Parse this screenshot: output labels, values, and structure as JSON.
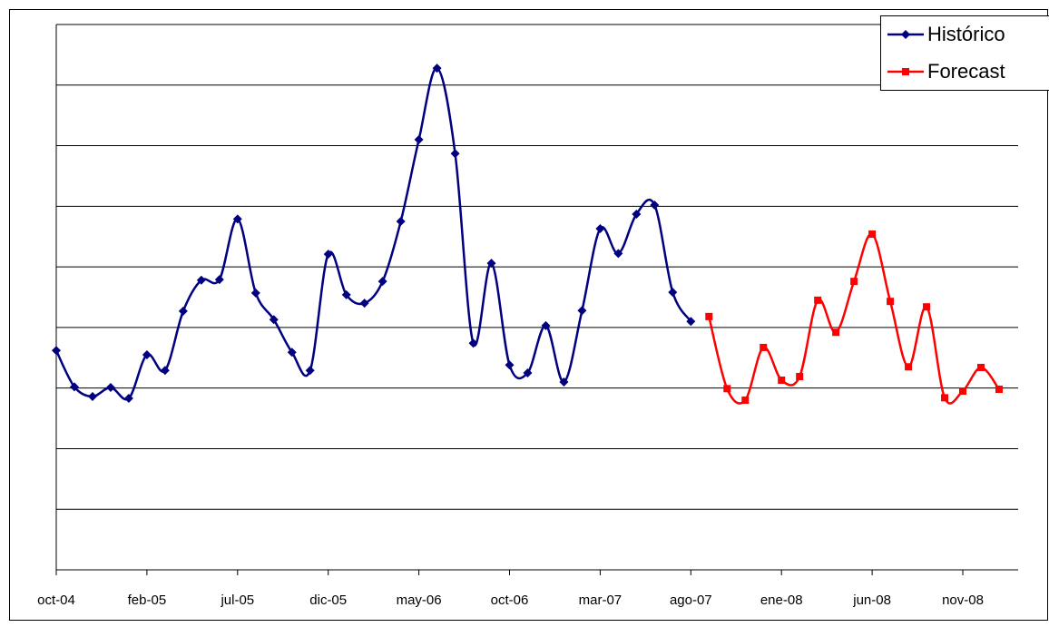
{
  "chart_data": {
    "type": "line",
    "categories": [
      "oct-04",
      null,
      null,
      null,
      null,
      "feb-05",
      null,
      null,
      null,
      null,
      "jul-05",
      null,
      null,
      null,
      null,
      "dic-05",
      null,
      null,
      null,
      null,
      "may-06",
      null,
      null,
      null,
      null,
      "oct-06",
      null,
      null,
      null,
      null,
      "mar-07",
      null,
      null,
      null,
      null,
      "ago-07",
      null,
      null,
      null,
      null,
      "ene-08",
      null,
      null,
      null,
      null,
      "jun-08",
      null,
      null,
      null,
      null,
      "nov-08",
      null,
      null
    ],
    "series": [
      {
        "name": "Histórico",
        "color": "#000080",
        "marker": "diamond",
        "values": [
          3.62,
          3.02,
          2.86,
          3.01,
          2.83,
          3.55,
          3.29,
          4.27,
          4.78,
          4.79,
          5.79,
          4.57,
          4.13,
          3.59,
          3.29,
          5.21,
          4.54,
          4.4,
          4.76,
          5.75,
          7.1,
          8.28,
          6.87,
          3.74,
          5.06,
          3.38,
          3.25,
          4.03,
          3.1,
          4.28,
          5.63,
          5.22,
          5.87,
          6.02,
          4.58,
          4.1,
          null,
          null,
          null,
          null,
          null,
          null,
          null,
          null,
          null,
          null,
          null,
          null,
          null,
          null,
          null,
          null,
          null
        ]
      },
      {
        "name": "Forecast",
        "color": "#ff0000",
        "marker": "square",
        "values": [
          null,
          null,
          null,
          null,
          null,
          null,
          null,
          null,
          null,
          null,
          null,
          null,
          null,
          null,
          null,
          null,
          null,
          null,
          null,
          null,
          null,
          null,
          null,
          null,
          null,
          null,
          null,
          null,
          null,
          null,
          null,
          null,
          null,
          null,
          null,
          null,
          4.18,
          2.99,
          2.8,
          3.67,
          3.13,
          3.19,
          4.45,
          3.92,
          4.76,
          5.54,
          4.43,
          3.35,
          4.34,
          2.84,
          2.95,
          3.34,
          2.98
        ]
      }
    ],
    "ylim": [
      0,
      9
    ],
    "yticks": [
      0,
      1,
      2,
      3,
      4,
      5,
      6,
      7,
      8,
      9
    ],
    "grid": true,
    "smooth": true,
    "legend": "top-right"
  }
}
